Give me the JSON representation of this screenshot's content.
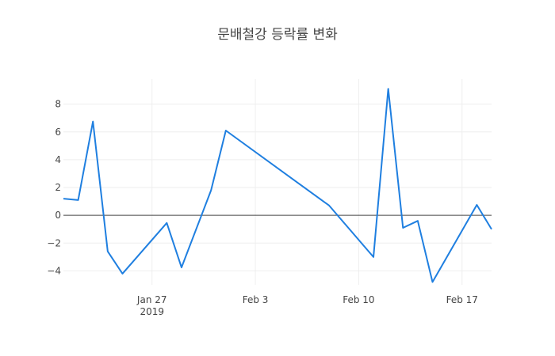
{
  "chart_data": {
    "type": "line",
    "title": "문배철강 등락률 변화",
    "x": [
      "2019-01-21",
      "2019-01-22",
      "2019-01-23",
      "2019-01-24",
      "2019-01-25",
      "2019-01-28",
      "2019-01-29",
      "2019-01-31",
      "2019-02-01",
      "2019-02-08",
      "2019-02-11",
      "2019-02-12",
      "2019-02-13",
      "2019-02-14",
      "2019-02-15",
      "2019-02-18",
      "2019-02-19"
    ],
    "series": [
      {
        "name": "등락률",
        "color": "#1f7fe0",
        "values": [
          1.2,
          1.1,
          6.75,
          -2.6,
          -4.2,
          -0.55,
          -3.75,
          1.8,
          6.1,
          0.7,
          -3.0,
          9.1,
          -0.9,
          -0.4,
          -4.8,
          0.75,
          -1.0
        ]
      }
    ],
    "xlim": [
      "2019-01-21",
      "2019-02-19"
    ],
    "xticks": [
      {
        "value": "2019-01-27",
        "label": "Jan 27\n2019"
      },
      {
        "value": "2019-02-03",
        "label": "Feb 3"
      },
      {
        "value": "2019-02-10",
        "label": "Feb 10"
      },
      {
        "value": "2019-02-17",
        "label": "Feb 17"
      }
    ],
    "ylim": [
      -5.0,
      9.8
    ],
    "yticks": [
      {
        "value": -4,
        "label": "−4"
      },
      {
        "value": -2,
        "label": "−2"
      },
      0,
      2,
      4,
      6,
      8
    ],
    "grid": true
  }
}
